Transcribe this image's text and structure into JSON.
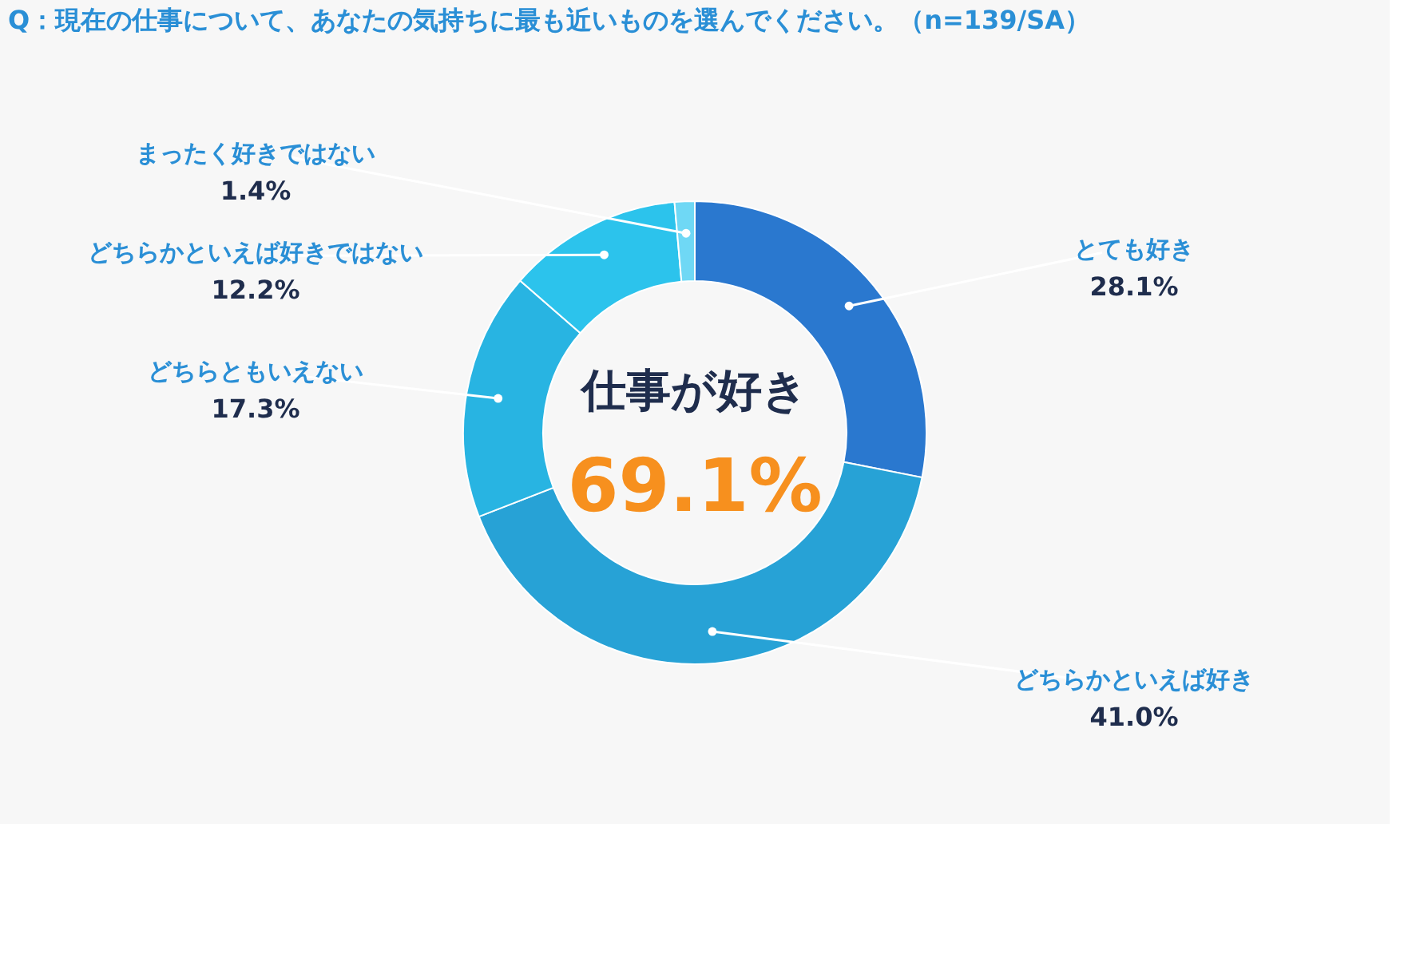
{
  "chart_data": {
    "type": "donut",
    "title": "Q：現在の仕事について、あなたの気持ちに最も近いものを選んでください。（n=139/SA）",
    "categories": [
      "とても好き",
      "どちらかといえば好き",
      "どちらともいえない",
      "どちらかといえば好きではない",
      "まったく好きではない"
    ],
    "values": [
      28.1,
      41.0,
      17.3,
      12.2,
      1.4
    ],
    "value_labels": [
      "28.1%",
      "41.0%",
      "17.3%",
      "12.2%",
      "1.4%"
    ],
    "colors": [
      "#2a78cf",
      "#27a2d6",
      "#28b4e2",
      "#2cc3ec",
      "#6fd8f5"
    ],
    "legend": false,
    "annotations": [
      "仕事が好き",
      "69.1%"
    ]
  }
}
